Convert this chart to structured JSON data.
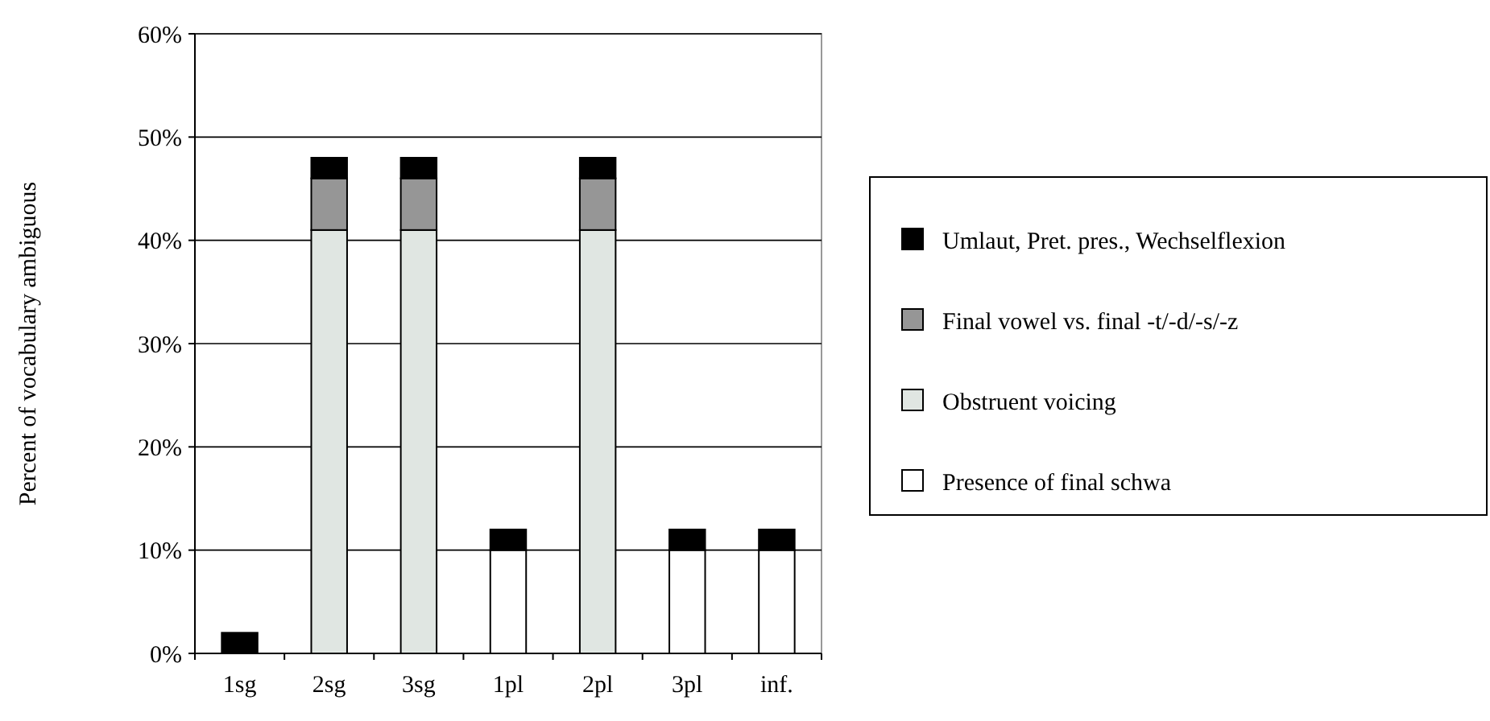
{
  "chart_data": {
    "type": "bar",
    "stacked": true,
    "ylabel": "Percent of vocabulary ambiguous",
    "categories": [
      "1sg",
      "2sg",
      "3sg",
      "1pl",
      "2pl",
      "3pl",
      "inf."
    ],
    "series": [
      {
        "name": "Presence of final schwa",
        "color": "#ffffff",
        "values": [
          0,
          0,
          0,
          10,
          0,
          10,
          10
        ]
      },
      {
        "name": "Obstruent voicing",
        "color": "#e0e6e2",
        "values": [
          0,
          41,
          41,
          0,
          41,
          0,
          0
        ]
      },
      {
        "name": "Final vowel vs. final -t/-d/-s/-z",
        "color": "#969696",
        "values": [
          0,
          5,
          5,
          0,
          5,
          0,
          0
        ]
      },
      {
        "name": "Umlaut, Pret. pres., Wechselflexion",
        "color": "#000000",
        "values": [
          2,
          2,
          2,
          2,
          2,
          2,
          2
        ]
      }
    ],
    "ylim": [
      0,
      60
    ],
    "yticks": [
      {
        "value": 0,
        "label": "0%"
      },
      {
        "value": 10,
        "label": "10%"
      },
      {
        "value": 20,
        "label": "20%"
      },
      {
        "value": 30,
        "label": "30%"
      },
      {
        "value": 40,
        "label": "40%"
      },
      {
        "value": 50,
        "label": "50%"
      },
      {
        "value": 60,
        "label": "60%"
      }
    ],
    "grid": "y",
    "legend": "right"
  }
}
